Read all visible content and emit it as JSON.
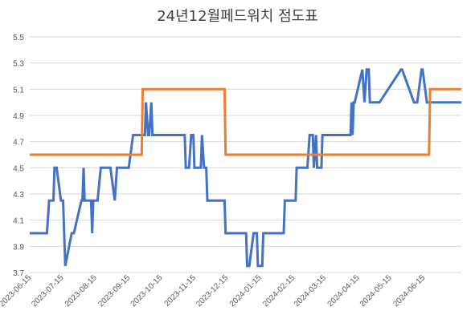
{
  "chart_data": {
    "type": "line",
    "title": "24년12월페드워치 점도표",
    "xlabel": "",
    "ylabel": "",
    "ylim": [
      3.7,
      5.5
    ],
    "yticks": [
      "3.7",
      "3.9",
      "4.1",
      "4.3",
      "4.5",
      "4.7",
      "4.9",
      "5.1",
      "5.3",
      "5.5"
    ],
    "xlim": [
      "2023-06-15",
      "2024-07-20"
    ],
    "xticks": [
      "2023-06-15",
      "2023-07-15",
      "2023-08-15",
      "2023-09-15",
      "2023-10-15",
      "2023-11-15",
      "2023-12-15",
      "2024-01-15",
      "2024-02-15",
      "2024-03-15",
      "2024-04-15",
      "2024-05-15",
      "2024-06-15"
    ],
    "grid": true,
    "legend": "none",
    "series": [
      {
        "color": "#4472C4",
        "x": [
          "2023-06-15",
          "2023-07-01",
          "2023-07-03",
          "2023-07-07",
          "2023-07-08",
          "2023-07-10",
          "2023-07-14",
          "2023-07-16",
          "2023-07-18",
          "2023-07-24",
          "2023-07-26",
          "2023-08-02",
          "2023-08-03",
          "2023-08-04",
          "2023-08-05",
          "2023-08-11",
          "2023-08-12",
          "2023-08-13",
          "2023-08-17",
          "2023-08-20",
          "2023-08-29",
          "2023-09-02",
          "2023-09-04",
          "2023-09-08",
          "2023-09-15",
          "2023-09-19",
          "2023-09-20",
          "2023-09-30",
          "2023-10-01",
          "2023-10-03",
          "2023-10-04",
          "2023-10-06",
          "2023-10-07",
          "2023-10-09",
          "2023-10-10",
          "2023-11-06",
          "2023-11-07",
          "2023-11-10",
          "2023-11-12",
          "2023-11-14",
          "2023-11-15",
          "2023-11-21",
          "2023-11-22",
          "2023-11-24",
          "2023-11-26",
          "2023-11-27",
          "2023-11-28",
          "2023-12-13",
          "2023-12-14",
          "2024-01-02",
          "2024-01-03",
          "2024-01-05",
          "2024-01-09",
          "2024-01-12",
          "2024-01-13",
          "2024-01-17",
          "2024-01-18",
          "2024-02-06",
          "2024-02-07",
          "2024-02-17",
          "2024-02-18",
          "2024-02-28",
          "2024-03-01",
          "2024-03-04",
          "2024-03-05",
          "2024-03-07",
          "2024-03-08",
          "2024-03-09",
          "2024-03-12",
          "2024-03-13",
          "2024-04-07",
          "2024-04-08",
          "2024-04-09",
          "2024-04-10",
          "2024-04-11",
          "2024-04-12",
          "2024-04-19",
          "2024-04-21",
          "2024-04-23",
          "2024-04-24",
          "2024-04-25",
          "2024-04-26",
          "2024-05-04",
          "2024-05-05",
          "2024-05-25",
          "2024-05-26",
          "2024-06-06",
          "2024-06-09",
          "2024-06-13",
          "2024-06-14",
          "2024-06-18",
          "2024-06-19",
          "2024-07-20"
        ],
        "y": [
          4.0,
          4.0,
          4.25,
          4.25,
          4.5,
          4.5,
          4.25,
          4.25,
          3.75,
          4.0,
          4.0,
          4.25,
          4.25,
          4.5,
          4.25,
          4.25,
          4.0,
          4.25,
          4.25,
          4.5,
          4.5,
          4.25,
          4.5,
          4.5,
          4.5,
          4.75,
          4.75,
          4.75,
          5.0,
          4.75,
          4.75,
          5.0,
          4.75,
          4.75,
          4.75,
          4.75,
          4.5,
          4.5,
          4.75,
          4.75,
          4.5,
          4.5,
          4.75,
          4.5,
          4.5,
          4.25,
          4.25,
          4.25,
          4.0,
          4.0,
          3.75,
          3.75,
          4.0,
          4.0,
          3.75,
          3.75,
          4.0,
          4.0,
          4.25,
          4.25,
          4.5,
          4.5,
          4.75,
          4.75,
          4.5,
          4.75,
          4.5,
          4.5,
          4.5,
          4.75,
          4.75,
          4.75,
          5.0,
          4.75,
          5.0,
          5.0,
          5.25,
          5.0,
          5.25,
          5.25,
          5.25,
          5.0,
          5.0,
          5.0,
          5.25,
          5.25,
          5.0,
          5.0,
          5.25,
          5.25,
          5.0,
          5.0,
          5.0
        ]
      },
      {
        "color": "#ED7D31",
        "x": [
          "2023-06-15",
          "2023-09-27",
          "2023-09-28",
          "2023-12-13",
          "2023-12-14",
          "2024-06-20",
          "2024-06-21",
          "2024-07-20"
        ],
        "y": [
          4.6,
          4.6,
          5.1,
          5.1,
          4.6,
          4.6,
          5.1,
          5.1
        ]
      }
    ]
  }
}
